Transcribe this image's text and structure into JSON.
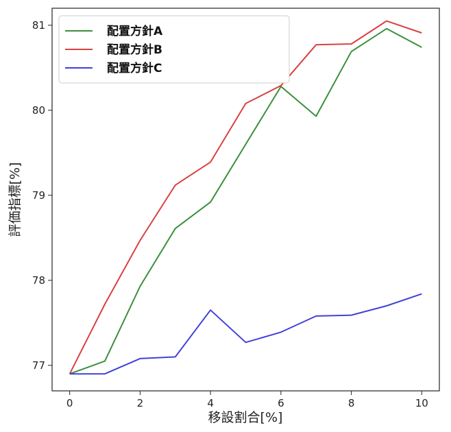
{
  "chart_data": {
    "type": "line",
    "title": "",
    "xlabel": "移設割合[%]",
    "ylabel": "評価指標[%]",
    "x": [
      0,
      1,
      2,
      3,
      4,
      5,
      6,
      7,
      8,
      9,
      10
    ],
    "xlim": [
      -0.5,
      10.5
    ],
    "ylim": [
      76.7,
      81.2
    ],
    "xticks": [
      0,
      2,
      4,
      6,
      8,
      10
    ],
    "yticks": [
      77,
      78,
      79,
      80,
      81
    ],
    "grid": false,
    "legend_position": "top-left",
    "series": [
      {
        "name": "配置方針A",
        "color": "#3a8f3a",
        "values": [
          76.9,
          77.05,
          77.93,
          78.61,
          78.92,
          79.6,
          80.28,
          79.93,
          80.69,
          80.96,
          80.74
        ]
      },
      {
        "name": "配置方針B",
        "color": "#d94040",
        "values": [
          76.9,
          77.72,
          78.47,
          79.12,
          79.39,
          80.08,
          80.29,
          80.77,
          80.78,
          81.05,
          80.91
        ]
      },
      {
        "name": "配置方針C",
        "color": "#4040d9",
        "values": [
          76.9,
          76.9,
          77.08,
          77.1,
          77.65,
          77.27,
          77.39,
          77.58,
          77.59,
          77.7,
          77.84
        ]
      }
    ]
  }
}
